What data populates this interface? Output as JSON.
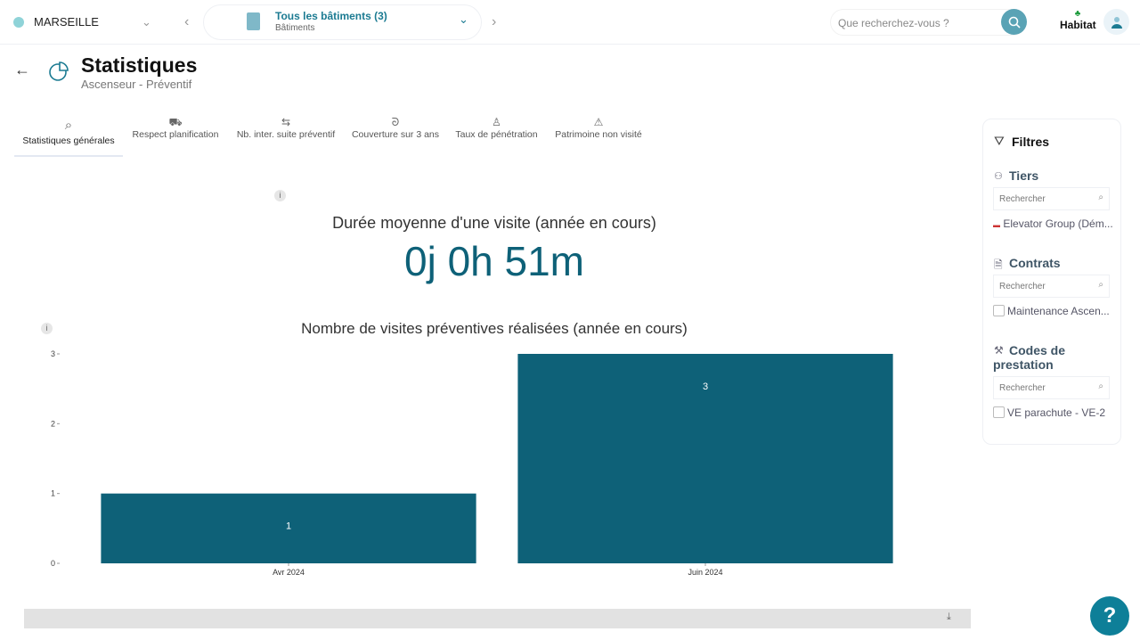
{
  "header": {
    "site": "MARSEILLE",
    "building_title": "Tous les bâtiments (3)",
    "building_subtitle": "Bâtiments",
    "search_placeholder": "Que recherchez-vous ?",
    "logo": "Habitat"
  },
  "page": {
    "title": "Statistiques",
    "subtitle": "Ascenseur - Préventif"
  },
  "tabs": [
    {
      "label": "Statistiques générales",
      "icon": "chart-search-icon",
      "active": true
    },
    {
      "label": "Respect planification",
      "icon": "truck-icon"
    },
    {
      "label": "Nb. inter. suite préventif",
      "icon": "arrows-icon"
    },
    {
      "label": "Couverture sur 3 ans",
      "icon": "route-icon"
    },
    {
      "label": "Taux de pénétration",
      "icon": "person-icon"
    },
    {
      "label": "Patrimoine non visité",
      "icon": "warning-icon"
    }
  ],
  "kpi": {
    "label": "Durée moyenne d'une visite (année en cours)",
    "value": "0j 0h 51m"
  },
  "chart_data": {
    "type": "bar",
    "title": "Nombre de visites préventives réalisées (année en cours)",
    "categories": [
      "Avr 2024",
      "Juin 2024"
    ],
    "values": [
      1,
      3
    ],
    "ylim": [
      0,
      3
    ],
    "yticks": [
      0,
      1,
      2,
      3
    ],
    "color": "#0e6178",
    "grid": false
  },
  "filters": {
    "title": "Filtres",
    "sections": [
      {
        "title": "Tiers",
        "placeholder": "Rechercher",
        "item": "Elevator Group (Dém..."
      },
      {
        "title": "Contrats",
        "placeholder": "Rechercher",
        "item": "Maintenance Ascen..."
      },
      {
        "title": "Codes de prestation",
        "placeholder": "Rechercher",
        "item": "VE parachute - VE-2"
      }
    ]
  },
  "help": "?"
}
